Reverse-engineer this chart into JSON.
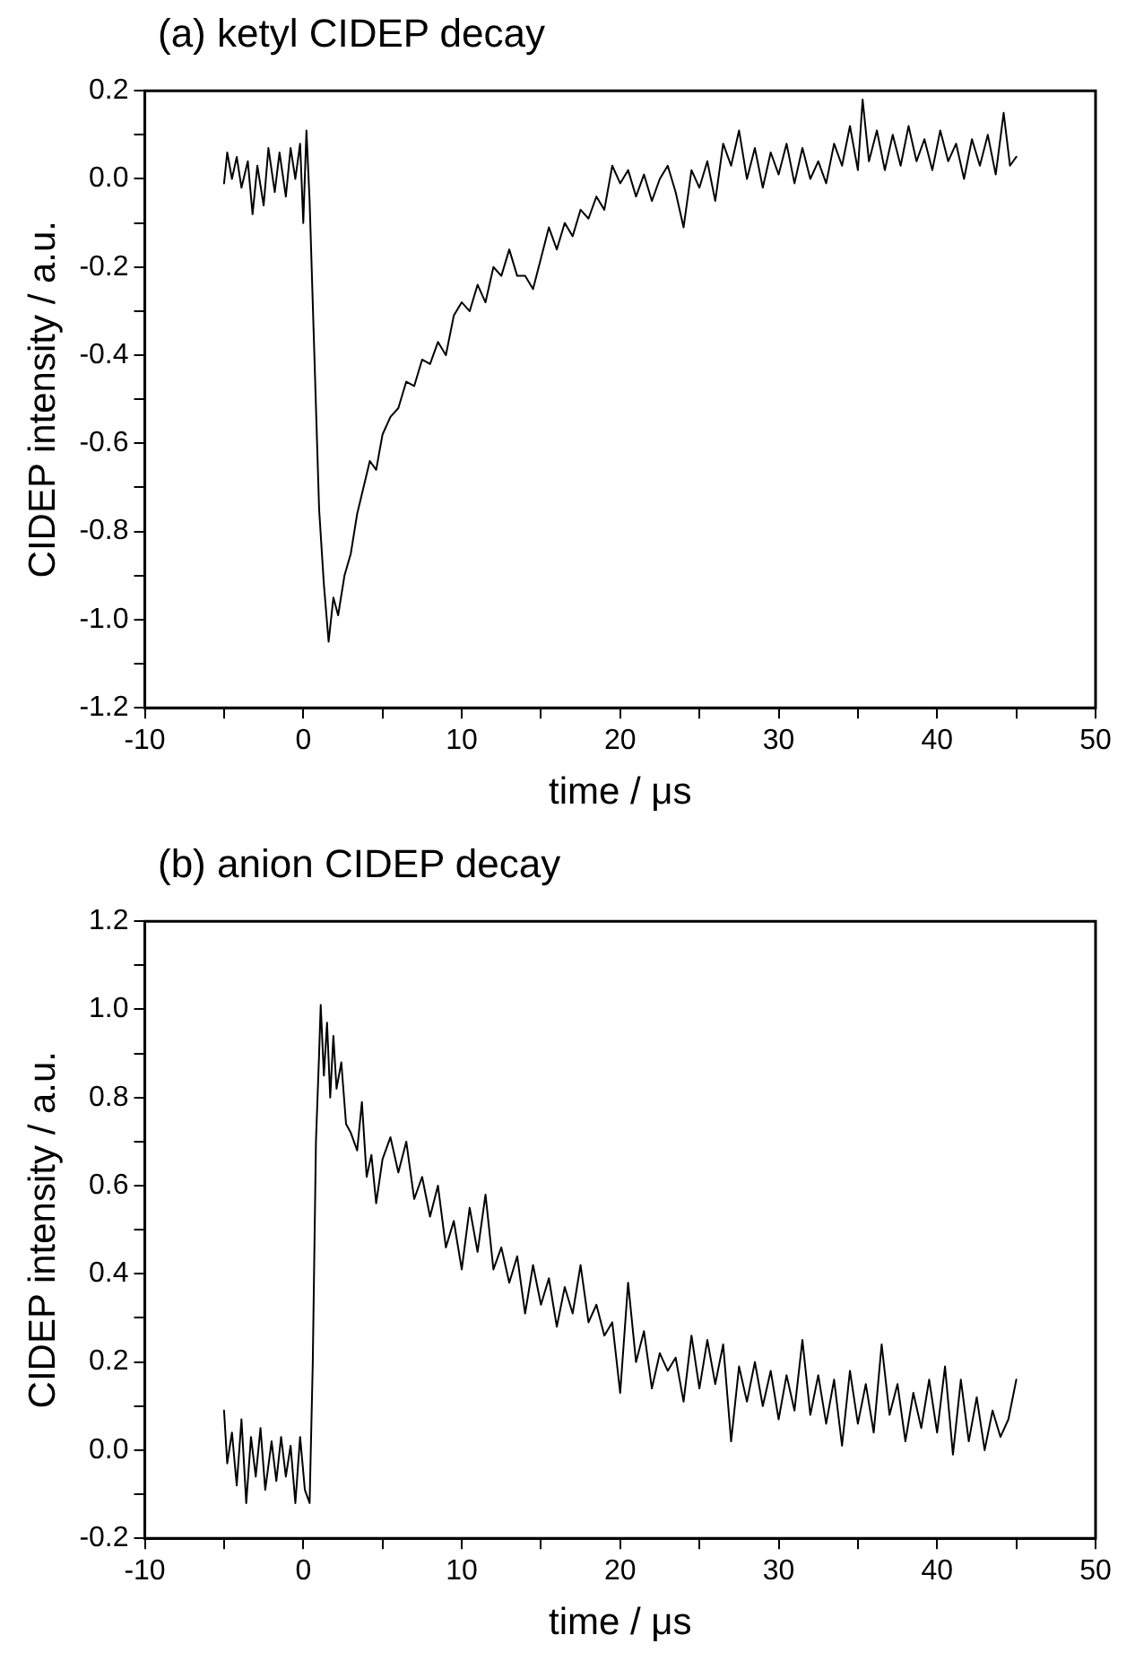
{
  "chart_data": [
    {
      "type": "line",
      "title": "(a) ketyl CIDEP decay",
      "xlabel": "time / μs",
      "ylabel": "CIDEP intensity / a.u.",
      "grid": false,
      "legend": false,
      "marker": "none",
      "line_style": "solid",
      "xlim": [
        -10,
        50
      ],
      "ylim": [
        -1.2,
        0.2
      ],
      "xticks": [
        -10,
        {
          "value": -5,
          "label": null
        },
        0,
        {
          "value": 5,
          "label": null
        },
        10,
        {
          "value": 15,
          "label": null
        },
        20,
        {
          "value": 25,
          "label": null
        },
        30,
        {
          "value": 35,
          "label": null
        },
        40,
        {
          "value": 45,
          "label": null
        },
        50
      ],
      "yticks": [
        -1.2,
        {
          "value": -1.1,
          "label": null
        },
        {
          "value": -1,
          "label": "-1.0"
        },
        {
          "value": -0.9,
          "label": null
        },
        -0.8,
        {
          "value": -0.7,
          "label": null
        },
        -0.6,
        {
          "value": -0.5,
          "label": null
        },
        -0.4,
        {
          "value": -0.3,
          "label": null
        },
        -0.2,
        {
          "value": -0.1,
          "label": null
        },
        {
          "value": 0,
          "label": "0.0"
        },
        {
          "value": 0.1,
          "label": null
        },
        0.2
      ],
      "series": [
        {
          "color": "#000000",
          "x": [
            -5,
            -4.8,
            -4.5,
            -4.2,
            -3.9,
            -3.5,
            -3.2,
            -2.9,
            -2.5,
            -2.2,
            -1.8,
            -1.5,
            -1.1,
            -0.8,
            -0.5,
            -0.2,
            0.0,
            0.2,
            0.4,
            0.7,
            1.0,
            1.3,
            1.6,
            1.9,
            2.2,
            2.6,
            3.0,
            3.4,
            3.8,
            4.2,
            4.6,
            5.0,
            5.5,
            6.0,
            6.5,
            7.0,
            7.5,
            8.0,
            8.5,
            9.0,
            9.5,
            10.0,
            10.5,
            11.0,
            11.5,
            12.0,
            12.5,
            13.0,
            13.5,
            14.0,
            14.5,
            15.0,
            15.5,
            16.0,
            16.5,
            17.0,
            17.5,
            18.0,
            18.5,
            19.0,
            19.5,
            20.0,
            20.5,
            21.0,
            21.5,
            22.0,
            22.5,
            23.0,
            23.5,
            24.0,
            24.5,
            25.0,
            25.5,
            26.0,
            26.5,
            27.0,
            27.5,
            28.0,
            28.5,
            29.0,
            29.5,
            30.0,
            30.5,
            31.0,
            31.5,
            32.0,
            32.5,
            33.0,
            33.5,
            34.0,
            34.5,
            35.0,
            35.3,
            35.7,
            36.2,
            36.7,
            37.2,
            37.7,
            38.2,
            38.7,
            39.2,
            39.7,
            40.2,
            40.7,
            41.2,
            41.7,
            42.2,
            42.7,
            43.2,
            43.7,
            44.2,
            44.6,
            45.0
          ],
          "values": [
            -0.01,
            0.06,
            0.0,
            0.05,
            -0.02,
            0.04,
            -0.08,
            0.03,
            -0.06,
            0.07,
            -0.03,
            0.06,
            -0.04,
            0.07,
            0.0,
            0.08,
            -0.1,
            0.11,
            -0.05,
            -0.4,
            -0.75,
            -0.92,
            -1.05,
            -0.95,
            -0.99,
            -0.9,
            -0.85,
            -0.76,
            -0.7,
            -0.64,
            -0.66,
            -0.58,
            -0.54,
            -0.52,
            -0.46,
            -0.47,
            -0.41,
            -0.42,
            -0.37,
            -0.4,
            -0.31,
            -0.28,
            -0.3,
            -0.24,
            -0.28,
            -0.2,
            -0.22,
            -0.16,
            -0.22,
            -0.22,
            -0.25,
            -0.18,
            -0.11,
            -0.16,
            -0.1,
            -0.13,
            -0.07,
            -0.09,
            -0.04,
            -0.07,
            0.03,
            -0.01,
            0.02,
            -0.04,
            0.01,
            -0.05,
            0.0,
            0.03,
            -0.03,
            -0.11,
            0.02,
            -0.02,
            0.04,
            -0.05,
            0.08,
            0.03,
            0.11,
            0.0,
            0.07,
            -0.02,
            0.06,
            0.01,
            0.08,
            -0.01,
            0.07,
            0.0,
            0.04,
            -0.01,
            0.08,
            0.03,
            0.12,
            0.02,
            0.18,
            0.04,
            0.11,
            0.02,
            0.1,
            0.03,
            0.12,
            0.04,
            0.09,
            0.02,
            0.11,
            0.04,
            0.08,
            0.0,
            0.09,
            0.03,
            0.1,
            0.01,
            0.15,
            0.03,
            0.05
          ]
        }
      ]
    },
    {
      "type": "line",
      "title": "(b) anion CIDEP decay",
      "xlabel": "time / μs",
      "ylabel": "CIDEP intensity / a.u.",
      "grid": false,
      "legend": false,
      "marker": "none",
      "line_style": "solid",
      "xlim": [
        -10,
        50
      ],
      "ylim": [
        -0.2,
        1.2
      ],
      "xticks": [
        -10,
        {
          "value": -5,
          "label": null
        },
        0,
        {
          "value": 5,
          "label": null
        },
        10,
        {
          "value": 15,
          "label": null
        },
        20,
        {
          "value": 25,
          "label": null
        },
        30,
        {
          "value": 35,
          "label": null
        },
        40,
        {
          "value": 45,
          "label": null
        },
        50
      ],
      "yticks": [
        -0.2,
        {
          "value": -0.1,
          "label": null
        },
        {
          "value": 0,
          "label": "0.0"
        },
        {
          "value": 0.1,
          "label": null
        },
        0.2,
        {
          "value": 0.3,
          "label": null
        },
        0.4,
        {
          "value": 0.5,
          "label": null
        },
        0.6,
        {
          "value": 0.7,
          "label": null
        },
        0.8,
        {
          "value": 0.9,
          "label": null
        },
        {
          "value": 1,
          "label": "1.0"
        },
        {
          "value": 1.1,
          "label": null
        },
        1.2
      ],
      "series": [
        {
          "color": "#000000",
          "x": [
            -5,
            -4.8,
            -4.5,
            -4.2,
            -3.9,
            -3.6,
            -3.3,
            -3.0,
            -2.7,
            -2.4,
            -2.0,
            -1.7,
            -1.4,
            -1.1,
            -0.8,
            -0.5,
            -0.2,
            0.1,
            0.4,
            0.6,
            0.8,
            1.0,
            1.1,
            1.3,
            1.5,
            1.7,
            1.9,
            2.1,
            2.4,
            2.7,
            3.0,
            3.4,
            3.7,
            4.0,
            4.3,
            4.6,
            5.0,
            5.5,
            6.0,
            6.5,
            7.0,
            7.5,
            8.0,
            8.5,
            9.0,
            9.5,
            10.0,
            10.5,
            11.0,
            11.5,
            12.0,
            12.5,
            13.0,
            13.5,
            14.0,
            14.5,
            15.0,
            15.5,
            16.0,
            16.5,
            17.0,
            17.5,
            18.0,
            18.5,
            19.0,
            19.5,
            20.0,
            20.5,
            21.0,
            21.5,
            22.0,
            22.5,
            23.0,
            23.5,
            24.0,
            24.5,
            25.0,
            25.5,
            26.0,
            26.5,
            27.0,
            27.5,
            28.0,
            28.5,
            29.0,
            29.5,
            30.0,
            30.5,
            31.0,
            31.5,
            32.0,
            32.5,
            33.0,
            33.5,
            34.0,
            34.5,
            35.0,
            35.5,
            36.0,
            36.5,
            37.0,
            37.5,
            38.0,
            38.5,
            39.0,
            39.5,
            40.0,
            40.5,
            41.0,
            41.5,
            42.0,
            42.5,
            43.0,
            43.5,
            44.0,
            44.5,
            45.0
          ],
          "values": [
            0.09,
            -0.03,
            0.04,
            -0.08,
            0.07,
            -0.12,
            0.03,
            -0.06,
            0.05,
            -0.09,
            0.02,
            -0.07,
            0.03,
            -0.06,
            0.01,
            -0.12,
            0.03,
            -0.09,
            -0.12,
            0.2,
            0.7,
            0.9,
            1.01,
            0.85,
            0.97,
            0.8,
            0.94,
            0.82,
            0.88,
            0.74,
            0.72,
            0.68,
            0.79,
            0.62,
            0.67,
            0.56,
            0.66,
            0.71,
            0.63,
            0.7,
            0.57,
            0.62,
            0.53,
            0.6,
            0.46,
            0.52,
            0.41,
            0.55,
            0.45,
            0.58,
            0.41,
            0.46,
            0.38,
            0.44,
            0.31,
            0.42,
            0.33,
            0.39,
            0.28,
            0.37,
            0.31,
            0.42,
            0.29,
            0.33,
            0.26,
            0.29,
            0.13,
            0.38,
            0.2,
            0.27,
            0.14,
            0.22,
            0.18,
            0.21,
            0.11,
            0.26,
            0.14,
            0.25,
            0.15,
            0.24,
            0.02,
            0.19,
            0.11,
            0.2,
            0.1,
            0.18,
            0.07,
            0.17,
            0.09,
            0.25,
            0.08,
            0.17,
            0.06,
            0.16,
            0.01,
            0.18,
            0.06,
            0.15,
            0.04,
            0.24,
            0.08,
            0.15,
            0.02,
            0.13,
            0.05,
            0.16,
            0.04,
            0.19,
            -0.01,
            0.16,
            0.02,
            0.12,
            0.0,
            0.09,
            0.03,
            0.07,
            0.16
          ]
        }
      ]
    }
  ]
}
